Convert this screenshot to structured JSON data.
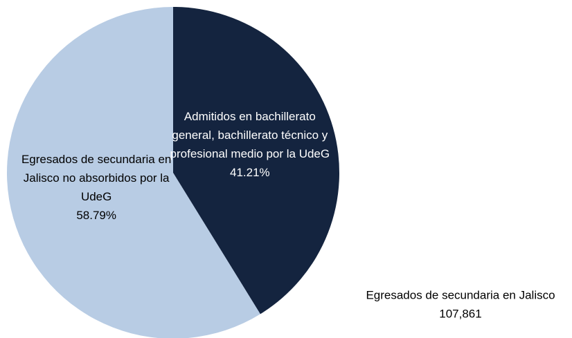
{
  "chart_data": {
    "type": "pie",
    "categories": [
      "Admitidos en bachillerato general, bachillerato técnico y profesional medio por la UdeG",
      "Egresados de secundaria en Jalisco no absorbidos por la UdeG"
    ],
    "values": [
      41.21,
      58.79
    ],
    "value_labels": [
      "41.21%",
      "58.79%"
    ],
    "colors": [
      "#14243f",
      "#b8cce4"
    ],
    "label_colors": [
      "#ffffff",
      "#000000"
    ],
    "annotation": "Egresados de secundaria en Jalisco",
    "annotation_value": "107,861"
  }
}
